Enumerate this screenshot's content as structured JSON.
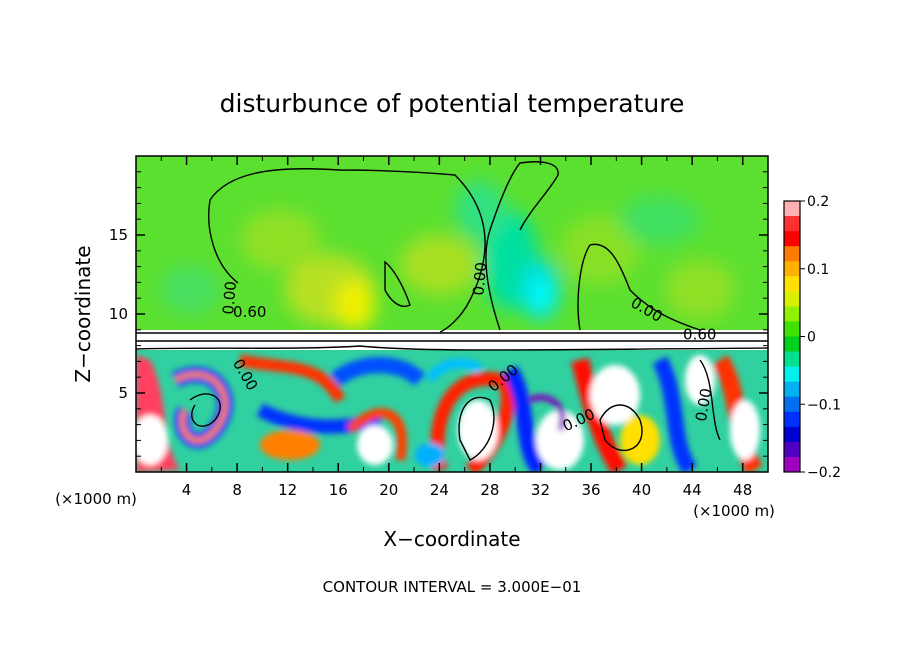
{
  "chart_data": {
    "type": "heatmap",
    "title": "disturbunce of potential temperature",
    "xlabel": "X−coordinate",
    "ylabel": "Z−coordinate",
    "x_unit_left": "(×1000 m)",
    "x_unit_right": "(×1000 m)",
    "footer": "CONTOUR INTERVAL = 3.000E−01",
    "xlim": [
      0,
      50
    ],
    "ylim": [
      0,
      20
    ],
    "x_ticks": [
      "4",
      "8",
      "12",
      "16",
      "20",
      "24",
      "28",
      "32",
      "36",
      "40",
      "44",
      "48"
    ],
    "y_ticks": [
      "5",
      "10",
      "15"
    ],
    "colorbar": {
      "range": [
        -0.2,
        0.2
      ],
      "tick_labels": [
        "0.2",
        "0.1",
        "0",
        "−0.1",
        "−0.2"
      ],
      "colors": [
        "#ffb0b0",
        "#ff3030",
        "#ff0000",
        "#ff7a00",
        "#ffb000",
        "#ffe000",
        "#d8f000",
        "#90f000",
        "#40e000",
        "#00d020",
        "#00e090",
        "#00f0f0",
        "#00b0f0",
        "#0070f0",
        "#0030ff",
        "#0000d0",
        "#5000c0",
        "#a000c0"
      ]
    },
    "contour_labels": [
      {
        "text": "0.00",
        "x": 7.8,
        "z": 11.0,
        "rot": -85
      },
      {
        "text": "0.60",
        "x": 9.0,
        "z": 9.8,
        "rot": 0
      },
      {
        "text": "0.00",
        "x": 27.6,
        "z": 12.2,
        "rot": -85
      },
      {
        "text": "0.00",
        "x": 40.2,
        "z": 10.0,
        "rot": 30
      },
      {
        "text": "0.60",
        "x": 44.6,
        "z": 8.4,
        "rot": 0
      },
      {
        "text": "0.00",
        "x": 8.3,
        "z": 6.0,
        "rot": 60
      },
      {
        "text": "0.00",
        "x": 29.3,
        "z": 5.7,
        "rot": -40
      },
      {
        "text": "0.00",
        "x": 35.2,
        "z": 3.0,
        "rot": -25
      },
      {
        "text": "0.00",
        "x": 45.3,
        "z": 4.2,
        "rot": -80
      }
    ]
  }
}
